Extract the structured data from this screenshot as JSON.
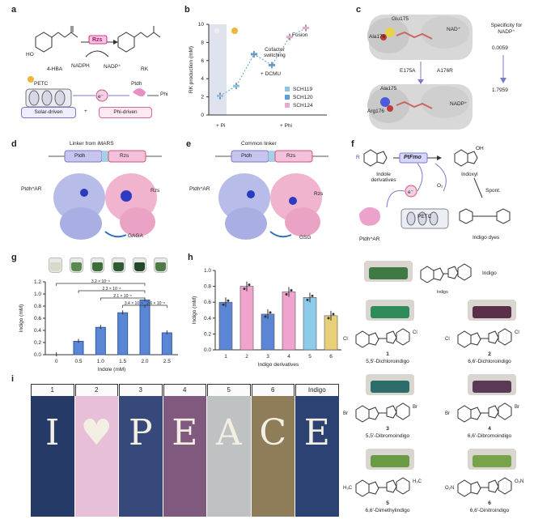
{
  "panels": {
    "a": {
      "letter": "a",
      "substrate": "4-HBA",
      "product": "RK",
      "enzyme": "Rzs",
      "cofactor_reduced": "NADPH",
      "cofactor_oxidized": "NADP⁺",
      "petc": "PETC",
      "electron": "e⁻",
      "ptdh": "Ptdh",
      "phi": "Phi",
      "solar_label": "Solar-driven",
      "plus": "+",
      "phi_label": "Phi-driven",
      "ho": "HO"
    },
    "b": {
      "letter": "b",
      "annot_fusion": "Fusion",
      "annot_cofactor": "Cofactor\nswitching",
      "annot_cofactor_1": "Cofactor",
      "annot_cofactor_2": "switching",
      "annot_dcmu": "+ DCMU",
      "xgroup_pi": "+ Pi",
      "xgroup_phi": "+ Phi"
    },
    "c": {
      "letter": "c",
      "res_top_1": "Glu175",
      "res_top_2": "Ala176",
      "nadp_top": "NAD⁺",
      "mutation_1": "E175A",
      "mutation_2": "A176R",
      "res_bot_1": "Ala175",
      "res_bot_2": "Arg176",
      "nadp_bot": "NADP⁺",
      "spec_title": "Specificity for NADP⁺",
      "spec_value_top": "0.0059",
      "spec_value_bot": "1.7959"
    },
    "d": {
      "letter": "d",
      "title": "Linker from iMARS",
      "gene_1": "Ptdh",
      "gene_2": "Rzs",
      "protein_left": "Ptdh^AR",
      "protein_right": "Rzs",
      "linker": "GAGA"
    },
    "e": {
      "letter": "e",
      "title": "Common linker",
      "gene_1": "Ptdh",
      "gene_2": "Rzs",
      "protein_left": "Ptdh^AR",
      "protein_right": "Rzs",
      "linker": "GSG"
    },
    "f": {
      "letter": "f",
      "enzyme": "PtFmo",
      "substrate": "Indole derivatives",
      "product": "Indoxyl",
      "electron": "e⁻",
      "o2": "O₂",
      "spont": "Spont.",
      "ptdh": "Ptdh^AR",
      "petc": "PETC",
      "dyes": "Indigo dyes",
      "r": "R",
      "oh": "OH"
    },
    "g": {
      "letter": "g"
    },
    "h": {
      "letter": "h"
    },
    "i": {
      "letter": "i",
      "banners": [
        {
          "head": "1",
          "letter": "I",
          "bg": "#263a67"
        },
        {
          "head": "2",
          "letter": "♥",
          "bg": "#e7bfd8"
        },
        {
          "head": "3",
          "letter": "P",
          "bg": "#36497a"
        },
        {
          "head": "4",
          "letter": "E",
          "bg": "#80597f"
        },
        {
          "head": "5",
          "letter": "A",
          "bg": "#bfc2c2"
        },
        {
          "head": "6",
          "letter": "C",
          "bg": "#8f7c58"
        },
        {
          "head": "Indigo",
          "letter": "E",
          "bg": "#2b4272"
        }
      ]
    },
    "structures": {
      "indigo_name": "Indigo",
      "indigo_sub": "Indigo",
      "compounds": [
        {
          "num": "1",
          "name": "5,5′-Dichloroindigo",
          "subs": "Cl",
          "color": "#2f8b5a"
        },
        {
          "num": "2",
          "name": "6,6′-Dichloroindigo",
          "subs": "Cl",
          "color": "#5b2f4a"
        },
        {
          "num": "3",
          "name": "5,5′-Dibromoindigo",
          "subs": "Br",
          "color": "#2c6c6b"
        },
        {
          "num": "4",
          "name": "6,6′-Dibromoindigo",
          "subs": "Br",
          "color": "#5a3a56"
        },
        {
          "num": "5",
          "name": "6,6′-Dimethylindigo",
          "subs": "H₃C",
          "color": "#6a9a43"
        },
        {
          "num": "6",
          "name": "6,6′-Dinitroindigo",
          "subs": "O₂N",
          "color": "#79a34b"
        }
      ],
      "indigo_color": "#3f7a45"
    }
  },
  "chart_data": [
    {
      "panel": "b",
      "type": "line",
      "ylabel": "RK production (mM)",
      "ylim": [
        0,
        10
      ],
      "yticks": [
        0,
        2,
        4,
        6,
        8,
        10
      ],
      "series": [
        {
          "name": "SCH119",
          "color": "#8fc3e6",
          "points": [
            {
              "x": 1,
              "y": 2.1
            },
            {
              "x": 2,
              "y": 3.2
            }
          ]
        },
        {
          "name": "SCH120",
          "color": "#5aa0d6",
          "points": [
            {
              "x": 3,
              "y": 6.7
            },
            {
              "x": 4,
              "y": 5.5
            }
          ]
        },
        {
          "name": "SCH124",
          "color": "#e6a9cf",
          "points": [
            {
              "x": 5,
              "y": 8.6
            },
            {
              "x": 6,
              "y": 9.6
            }
          ]
        }
      ],
      "xgroups": [
        "+ Pi",
        "+ Phi"
      ],
      "legend": "bottom-right"
    },
    {
      "panel": "g",
      "type": "bar",
      "xlabel": "Indole (mM)",
      "ylabel": "Indigo (mM)",
      "categories": [
        "0",
        "0.5",
        "1.0",
        "1.5",
        "2.0",
        "2.5"
      ],
      "values": [
        0.0,
        0.22,
        0.45,
        0.69,
        0.9,
        0.36
      ],
      "ylim": [
        0,
        1.2
      ],
      "yticks": [
        0,
        0.2,
        0.4,
        0.6,
        0.8,
        1.0,
        1.2
      ],
      "significance": [
        "3.2 × 10⁻⁸",
        "2.3 × 10⁻⁸",
        "2.1 × 10⁻⁶",
        "3.4 × 10⁻⁶",
        "2.6 × 10⁻⁸"
      ],
      "jar_colors": [
        "#d9d9c9",
        "#5a8a4f",
        "#3b6e3a",
        "#2f5a32",
        "#24462a",
        "#4f7a48"
      ]
    },
    {
      "panel": "h",
      "type": "bar",
      "xlabel": "Indigo derivatives",
      "ylabel": "Indigo (mM)",
      "categories": [
        "1",
        "2",
        "3",
        "4",
        "5",
        "6"
      ],
      "values": [
        0.6,
        0.8,
        0.45,
        0.73,
        0.66,
        0.43
      ],
      "colors": [
        "#5b86d6",
        "#f0a3cd",
        "#5b86d6",
        "#f0a3cd",
        "#8ccbea",
        "#e8cf7a"
      ],
      "ylim": [
        0,
        1.0
      ],
      "yticks": [
        0,
        0.2,
        0.4,
        0.6,
        0.8,
        1.0
      ]
    }
  ]
}
